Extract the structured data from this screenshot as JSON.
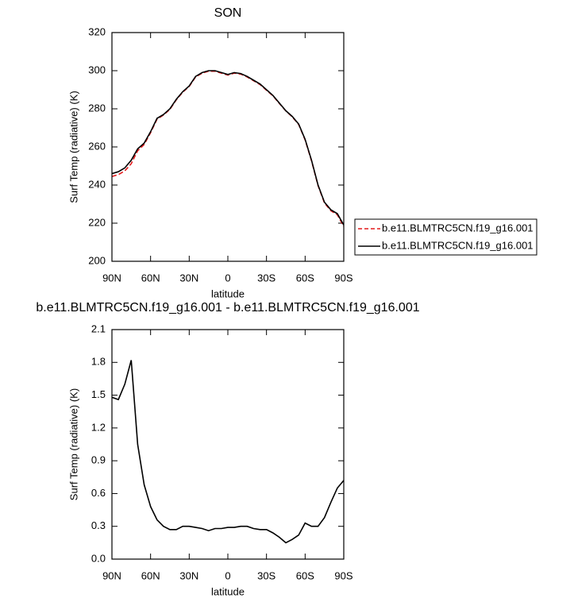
{
  "chart_data": [
    {
      "type": "line",
      "title": "SON",
      "x_label": "latitude",
      "y_label": "Surf Temp (radiative) (K)",
      "x": [
        90,
        85,
        80,
        75,
        70,
        65,
        60,
        55,
        50,
        45,
        40,
        35,
        30,
        25,
        20,
        15,
        10,
        5,
        0,
        -5,
        -10,
        -15,
        -20,
        -25,
        -30,
        -35,
        -40,
        -45,
        -50,
        -55,
        -60,
        -65,
        -70,
        -75,
        -80,
        -85,
        -90
      ],
      "series": [
        {
          "name": "b.e11.BLMTRC5CN.f19_g16.001",
          "color": "#e41a1c",
          "dash": true,
          "values": [
            244.5,
            245.5,
            247.4,
            251.2,
            258,
            261.3,
            267.5,
            274.6,
            276.7,
            279.7,
            284.7,
            288.7,
            291.7,
            296.7,
            298.7,
            299.7,
            299.7,
            298.7,
            297.7,
            298.7,
            298.2,
            296.7,
            294.7,
            292.7,
            289.7,
            286.8,
            282.8,
            278.9,
            275.8,
            271.8,
            263.7,
            252.7,
            239.7,
            230.6,
            226.5,
            224.4,
            218.3
          ]
        },
        {
          "name": "b.e11.BLMTRC5CN.f19_g16.001",
          "color": "#000000",
          "dash": false,
          "values": [
            246,
            247,
            249,
            253,
            259,
            262,
            268,
            275,
            277,
            280,
            285,
            289,
            292,
            297,
            299,
            300,
            300,
            299,
            298,
            299,
            298.5,
            297,
            295,
            293,
            290,
            287,
            283,
            279,
            276,
            272,
            264,
            253,
            240,
            231,
            227,
            225,
            219
          ]
        }
      ],
      "xlim": [
        90,
        -90
      ],
      "xticks": [
        {
          "value": 90,
          "label": "90N"
        },
        {
          "value": 60,
          "label": "60N"
        },
        {
          "value": 30,
          "label": "30N"
        },
        0,
        {
          "value": -30,
          "label": "30S"
        },
        {
          "value": -60,
          "label": "60S"
        },
        {
          "value": -90,
          "label": "90S"
        }
      ],
      "ylim": [
        200,
        320
      ],
      "yticks": [
        200,
        220,
        240,
        260,
        280,
        300,
        320
      ]
    },
    {
      "type": "line",
      "title": "b.e11.BLMTRC5CN.f19_g16.001 - b.e11.BLMTRC5CN.f19_g16.001",
      "x_label": "latitude",
      "y_label": "Surf Temp (radiative) (K)",
      "x": [
        90,
        85,
        80,
        75,
        70,
        65,
        60,
        55,
        50,
        45,
        40,
        35,
        30,
        25,
        20,
        15,
        10,
        5,
        0,
        -5,
        -10,
        -15,
        -20,
        -25,
        -30,
        -35,
        -40,
        -45,
        -50,
        -55,
        -60,
        -65,
        -70,
        -75,
        -80,
        -85,
        -90
      ],
      "values": [
        1.48,
        1.46,
        1.6,
        1.82,
        1.05,
        0.68,
        0.48,
        0.36,
        0.3,
        0.27,
        0.27,
        0.3,
        0.3,
        0.29,
        0.28,
        0.26,
        0.28,
        0.28,
        0.29,
        0.29,
        0.3,
        0.3,
        0.28,
        0.27,
        0.27,
        0.24,
        0.2,
        0.15,
        0.18,
        0.22,
        0.33,
        0.3,
        0.3,
        0.38,
        0.52,
        0.65,
        0.72
      ],
      "color": "#000000",
      "xlim": [
        90,
        -90
      ],
      "xticks": [
        {
          "value": 90,
          "label": "90N"
        },
        {
          "value": 60,
          "label": "60N"
        },
        {
          "value": 30,
          "label": "30N"
        },
        0,
        {
          "value": -30,
          "label": "30S"
        },
        {
          "value": -60,
          "label": "60S"
        },
        {
          "value": -90,
          "label": "90S"
        }
      ],
      "ylim": [
        0.0,
        2.1
      ],
      "yticks": [
        {
          "value": 0,
          "label": "0.0"
        },
        0.3,
        0.6,
        0.9,
        1.2,
        1.5,
        1.8,
        2.1
      ]
    }
  ]
}
